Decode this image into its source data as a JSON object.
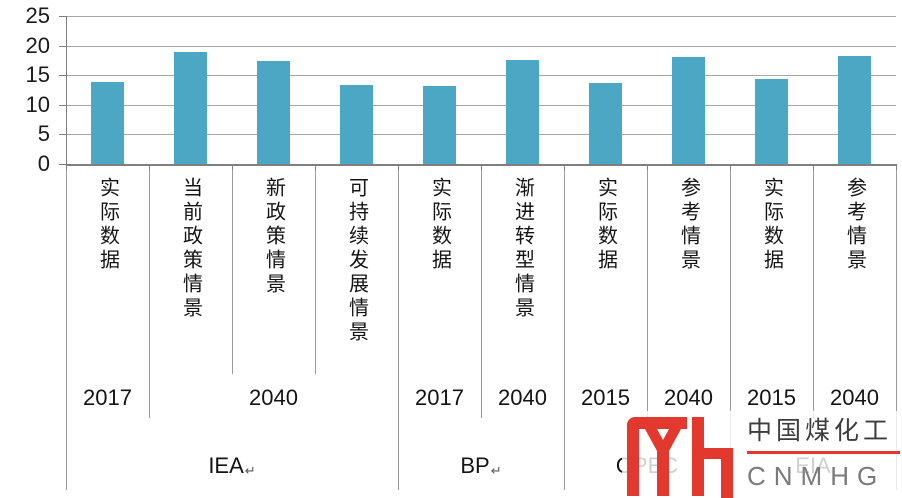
{
  "chart_data": {
    "type": "bar",
    "title": "",
    "xlabel": "",
    "ylabel": "",
    "ylim": [
      0,
      25
    ],
    "yticks": [
      25,
      20,
      15,
      10,
      5,
      0
    ],
    "grid": true,
    "legend": null,
    "bar_color": "#4BA7C3",
    "categories": [
      "实际数据",
      "当前政策情景",
      "新政策情景",
      "可持续发展情景",
      "实际数据",
      "渐进转型情景",
      "实际数据",
      "参考情景",
      "实际数据",
      "参考情景"
    ],
    "values": [
      13.8,
      19.0,
      17.4,
      13.3,
      13.2,
      17.6,
      13.6,
      18.1,
      14.3,
      18.3
    ],
    "year_row": [
      {
        "label": "2017",
        "span": 1
      },
      {
        "label": "2040",
        "span": 3
      },
      {
        "label": "2017",
        "span": 1
      },
      {
        "label": "2040",
        "span": 1
      },
      {
        "label": "2015",
        "span": 1
      },
      {
        "label": "2040",
        "span": 1
      },
      {
        "label": "2015",
        "span": 1
      },
      {
        "label": "2040",
        "span": 1
      }
    ],
    "group_row": [
      {
        "label": "IEA",
        "span": 4,
        "mark": "↵"
      },
      {
        "label": "BP",
        "span": 2,
        "mark": "↵"
      },
      {
        "label": "OPEC",
        "span": 2,
        "mark": ""
      },
      {
        "label": "EIA",
        "span": 2,
        "mark": ""
      }
    ]
  },
  "watermark": {
    "cn": "中国煤化工",
    "en": "CNMHG",
    "color": "#E2382E"
  }
}
